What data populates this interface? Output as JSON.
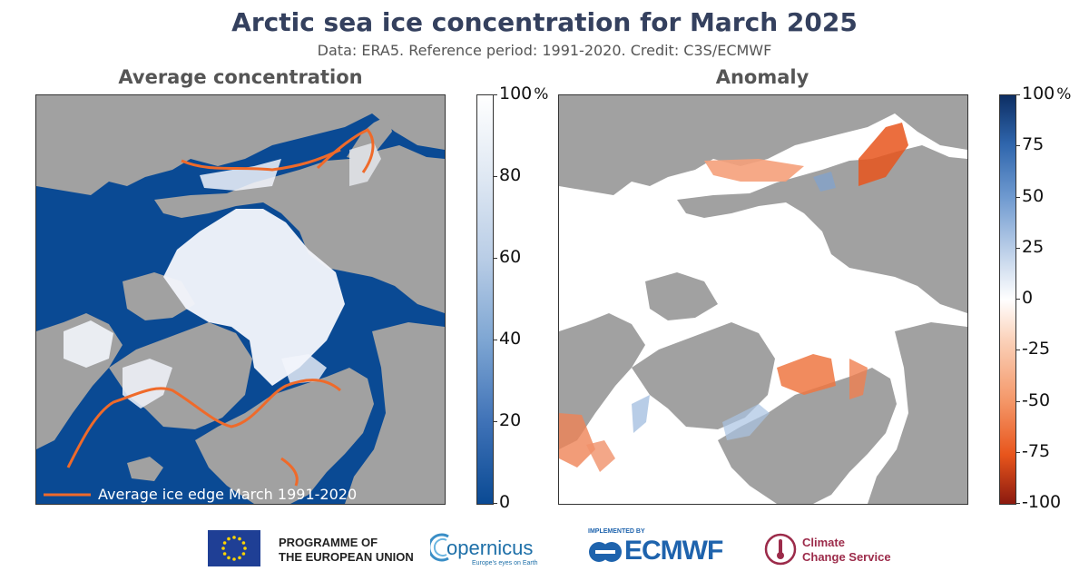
{
  "header": {
    "title": "Arctic sea ice concentration for March 2025",
    "subtitle": "Data: ERA5.  Reference period: 1991-2020.  Credit: C3S/ECMWF"
  },
  "left_panel": {
    "title": "Average concentration",
    "legend_label": "Average ice edge March 1991-2020",
    "colorbar": {
      "unit": "%",
      "ticks": [
        "100",
        "80",
        "60",
        "40",
        "20",
        "0"
      ],
      "min": 0,
      "max": 100
    }
  },
  "right_panel": {
    "title": "Anomaly",
    "colorbar": {
      "unit": "%",
      "ticks": [
        "100",
        "75",
        "50",
        "25",
        "0",
        "-25",
        "-50",
        "-75",
        "-100"
      ],
      "min": -100,
      "max": 100
    }
  },
  "footer": {
    "eu_line1": "PROGRAMME OF",
    "eu_line2": "THE EUROPEAN UNION",
    "copernicus_name": "opernicus",
    "copernicus_tagline": "Europe's eyes on Earth",
    "implemented_by": "IMPLEMENTED BY",
    "ecmwf": "ECMWF",
    "c3s_line1": "Climate",
    "c3s_line2": "Change Service"
  },
  "colors": {
    "ocean": "#0a4a94",
    "land": "#a1a1a1",
    "ice": "#f2f5fb",
    "ice_edge": "#ef6a2a",
    "title": "#34405e",
    "ecmwf_blue": "#1e63ad",
    "c3s_red": "#9c2b4a"
  }
}
